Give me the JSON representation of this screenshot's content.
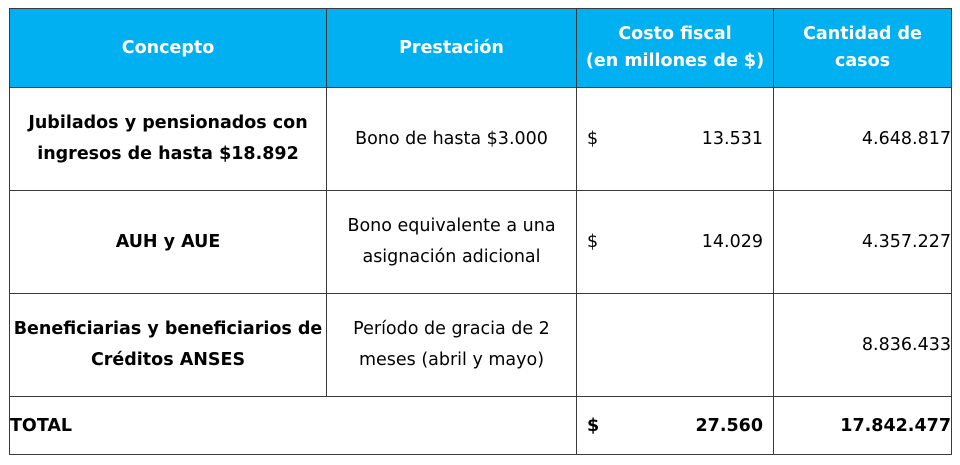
{
  "table": {
    "headers": {
      "concepto": "Concepto",
      "prestacion": "Prestación",
      "costo_line1": "Costo fiscal",
      "costo_line2": "(en millones de $)",
      "casos": "Cantidad de casos"
    },
    "rows": [
      {
        "concepto_line1": "Jubilados y pensionados con",
        "concepto_line2": "ingresos de hasta $18.892",
        "prestacion_line1": "Bono de hasta $3.000",
        "prestacion_line2": "",
        "currency": "$",
        "costo": "13.531",
        "casos": "4.648.817"
      },
      {
        "concepto_line1": "AUH y AUE",
        "concepto_line2": "",
        "prestacion_line1": "Bono equivalente a una",
        "prestacion_line2": "asignación adicional",
        "currency": "$",
        "costo": "14.029",
        "casos": "4.357.227"
      },
      {
        "concepto_line1": "Beneficiarias y beneficiarios de",
        "concepto_line2": "Créditos ANSES",
        "prestacion_line1": "Período de gracia de 2",
        "prestacion_line2": "meses (abril y mayo)",
        "currency": "",
        "costo": "",
        "casos": "8.836.433"
      }
    ],
    "total": {
      "label": "TOTAL",
      "currency": "$",
      "costo": "27.560",
      "casos": "17.842.477"
    },
    "colors": {
      "header_background": "#00b0f0",
      "header_text": "#ffffff",
      "border": "#3a3a3a"
    }
  }
}
